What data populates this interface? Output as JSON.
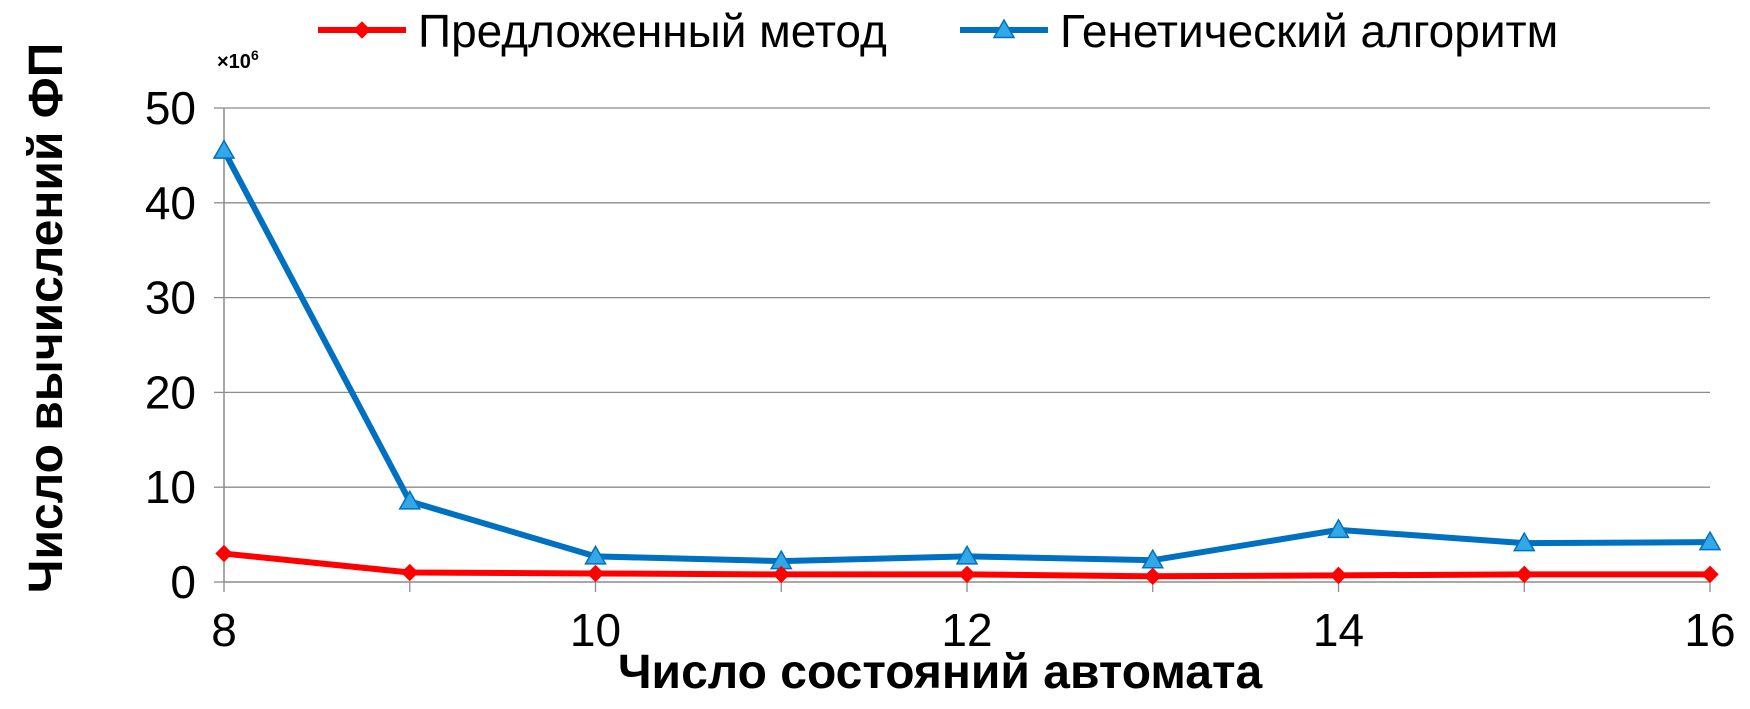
{
  "chart_data": {
    "type": "line",
    "title": "",
    "xlabel": "Число состояний автомата",
    "ylabel": "Число вычислений ФП",
    "y_multiplier": "×10",
    "y_multiplier_exp": "6",
    "x": [
      8,
      9,
      10,
      11,
      12,
      13,
      14,
      15,
      16
    ],
    "xlim": [
      8,
      16
    ],
    "ylim": [
      0,
      50
    ],
    "x_ticks": [
      8,
      10,
      12,
      14,
      16
    ],
    "y_ticks": [
      0,
      10,
      20,
      30,
      40,
      50
    ],
    "grid": true,
    "legend_position": "top",
    "series": [
      {
        "name": "Предложенный метод",
        "color": "#ff0000",
        "marker": "diamond",
        "values": [
          3.0,
          1.0,
          0.9,
          0.8,
          0.8,
          0.6,
          0.7,
          0.8,
          0.8
        ]
      },
      {
        "name": "Генетический алгоритм",
        "color": "#0070c0",
        "marker": "triangle",
        "values": [
          45.5,
          8.5,
          2.7,
          2.2,
          2.7,
          2.3,
          5.5,
          4.1,
          4.2
        ]
      }
    ]
  }
}
